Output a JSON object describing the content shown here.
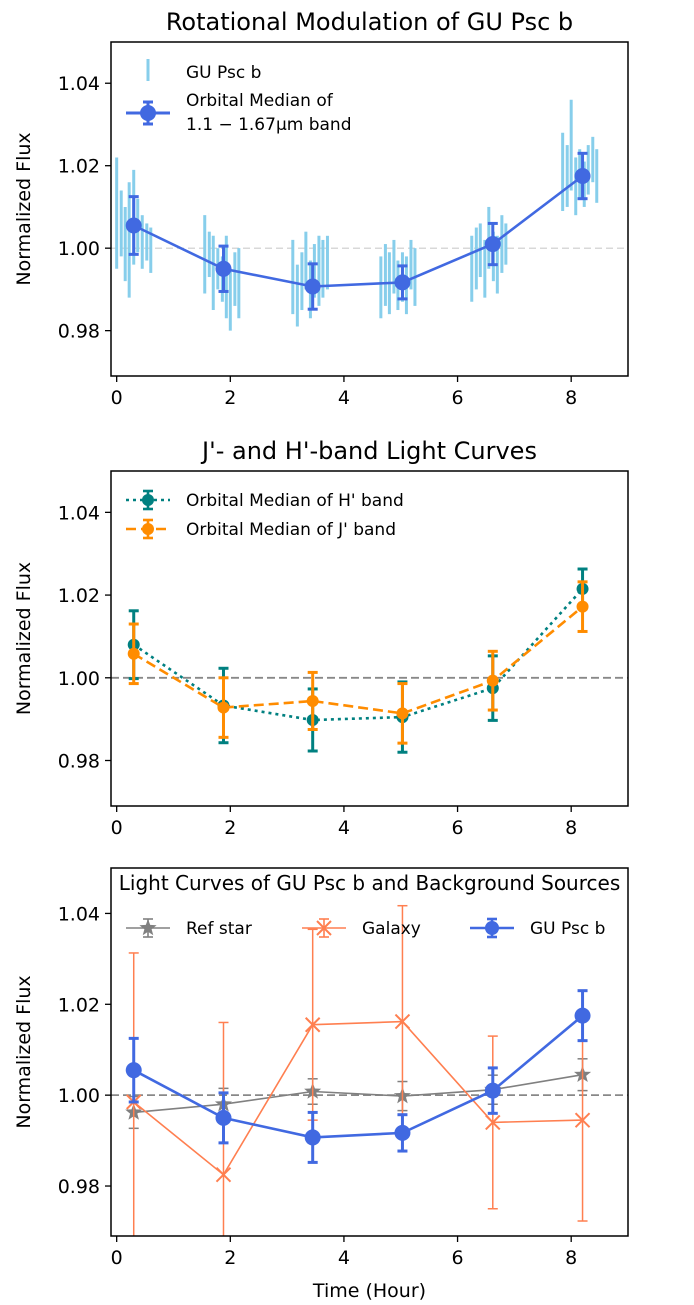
{
  "chart_data": [
    {
      "type": "line",
      "title": "Rotational Modulation of GU Psc b",
      "ylabel": "Normalized Flux",
      "xlabel": "",
      "xlim": [
        -0.1,
        9.0
      ],
      "ylim": [
        0.969,
        1.05
      ],
      "xticks": [
        0,
        2,
        4,
        6,
        8
      ],
      "yticks": [
        0.98,
        1.0,
        1.02,
        1.04
      ],
      "ytick_labels": [
        "0.98",
        "1.00",
        "1.02",
        "1.04"
      ],
      "reference_line": 1.0,
      "legend_position": "upper-left",
      "individual_points": {
        "name": "GU Psc b",
        "color": "#87ceeb",
        "points": [
          {
            "x": 0.0,
            "lo": 0.995,
            "hi": 1.022
          },
          {
            "x": 0.08,
            "lo": 0.998,
            "hi": 1.014
          },
          {
            "x": 0.15,
            "lo": 0.992,
            "hi": 1.01
          },
          {
            "x": 0.22,
            "lo": 0.988,
            "hi": 1.016
          },
          {
            "x": 0.3,
            "lo": 0.996,
            "hi": 1.019
          },
          {
            "x": 0.37,
            "lo": 0.999,
            "hi": 1.012
          },
          {
            "x": 0.45,
            "lo": 0.995,
            "hi": 1.008
          },
          {
            "x": 0.53,
            "lo": 0.997,
            "hi": 1.006
          },
          {
            "x": 0.6,
            "lo": 0.994,
            "hi": 1.005
          },
          {
            "x": 1.55,
            "lo": 0.989,
            "hi": 1.008
          },
          {
            "x": 1.63,
            "lo": 0.993,
            "hi": 1.004
          },
          {
            "x": 1.7,
            "lo": 0.985,
            "hi": 1.003
          },
          {
            "x": 1.78,
            "lo": 0.99,
            "hi": 1.0
          },
          {
            "x": 1.86,
            "lo": 0.987,
            "hi": 0.998
          },
          {
            "x": 1.93,
            "lo": 0.983,
            "hi": 1.003
          },
          {
            "x": 2.0,
            "lo": 0.98,
            "hi": 0.995
          },
          {
            "x": 2.08,
            "lo": 0.986,
            "hi": 0.999
          },
          {
            "x": 2.15,
            "lo": 0.983,
            "hi": 1.0
          },
          {
            "x": 3.1,
            "lo": 0.984,
            "hi": 1.002
          },
          {
            "x": 3.18,
            "lo": 0.981,
            "hi": 0.996
          },
          {
            "x": 3.26,
            "lo": 0.985,
            "hi": 0.999
          },
          {
            "x": 3.33,
            "lo": 0.99,
            "hi": 1.004
          },
          {
            "x": 3.41,
            "lo": 0.983,
            "hi": 0.997
          },
          {
            "x": 3.48,
            "lo": 0.988,
            "hi": 1.001
          },
          {
            "x": 3.56,
            "lo": 0.986,
            "hi": 1.003
          },
          {
            "x": 3.63,
            "lo": 0.988,
            "hi": 1.002
          },
          {
            "x": 3.71,
            "lo": 0.99,
            "hi": 1.003
          },
          {
            "x": 4.65,
            "lo": 0.983,
            "hi": 0.998
          },
          {
            "x": 4.73,
            "lo": 0.986,
            "hi": 1.001
          },
          {
            "x": 4.8,
            "lo": 0.984,
            "hi": 0.999
          },
          {
            "x": 4.88,
            "lo": 0.989,
            "hi": 1.002
          },
          {
            "x": 4.95,
            "lo": 0.985,
            "hi": 0.997
          },
          {
            "x": 5.03,
            "lo": 0.987,
            "hi": 0.999
          },
          {
            "x": 5.1,
            "lo": 0.984,
            "hi": 0.998
          },
          {
            "x": 5.18,
            "lo": 0.99,
            "hi": 1.002
          },
          {
            "x": 5.25,
            "lo": 0.986,
            "hi": 1.0
          },
          {
            "x": 6.25,
            "lo": 0.987,
            "hi": 1.003
          },
          {
            "x": 6.33,
            "lo": 0.99,
            "hi": 1.005
          },
          {
            "x": 6.4,
            "lo": 0.993,
            "hi": 1.006
          },
          {
            "x": 6.48,
            "lo": 0.988,
            "hi": 1.002
          },
          {
            "x": 6.55,
            "lo": 0.995,
            "hi": 1.01
          },
          {
            "x": 6.63,
            "lo": 0.992,
            "hi": 1.004
          },
          {
            "x": 6.7,
            "lo": 0.989,
            "hi": 1.003
          },
          {
            "x": 6.78,
            "lo": 0.994,
            "hi": 1.008
          },
          {
            "x": 6.85,
            "lo": 0.996,
            "hi": 1.006
          },
          {
            "x": 7.85,
            "lo": 1.009,
            "hi": 1.028
          },
          {
            "x": 7.93,
            "lo": 1.01,
            "hi": 1.025
          },
          {
            "x": 8.0,
            "lo": 1.014,
            "hi": 1.036
          },
          {
            "x": 8.08,
            "lo": 1.008,
            "hi": 1.022
          },
          {
            "x": 8.15,
            "lo": 1.012,
            "hi": 1.024
          },
          {
            "x": 8.23,
            "lo": 1.01,
            "hi": 1.021
          },
          {
            "x": 8.3,
            "lo": 1.013,
            "hi": 1.025
          },
          {
            "x": 8.38,
            "lo": 1.016,
            "hi": 1.027
          },
          {
            "x": 8.45,
            "lo": 1.011,
            "hi": 1.024
          }
        ]
      },
      "series": [
        {
          "name": "Orbital Median of 1.1 − 1.67μm band",
          "color": "#4169e1",
          "linestyle": "solid",
          "marker": "circle",
          "x": [
            0.3,
            1.88,
            3.45,
            5.03,
            6.62,
            8.2
          ],
          "y": [
            1.0055,
            0.995,
            0.9907,
            0.9917,
            1.001,
            1.0175
          ],
          "err": [
            0.007,
            0.0055,
            0.0055,
            0.004,
            0.005,
            0.0055
          ]
        }
      ],
      "legend_labels": [
        "GU Psc b",
        "Orbital Median of",
        "1.1 − 1.67μm band"
      ]
    },
    {
      "type": "line",
      "title": "J'- and H'-band Light Curves",
      "ylabel": "Normalized Flux",
      "xlabel": "",
      "xlim": [
        -0.1,
        9.0
      ],
      "ylim": [
        0.969,
        1.05
      ],
      "xticks": [
        0,
        2,
        4,
        6,
        8
      ],
      "yticks": [
        0.98,
        1.0,
        1.02,
        1.04
      ],
      "ytick_labels": [
        "0.98",
        "1.00",
        "1.02",
        "1.04"
      ],
      "reference_line": 1.0,
      "legend_position": "upper-left",
      "series": [
        {
          "name": "Orbital Median of H' band",
          "color": "#008080",
          "linestyle": "dotted",
          "marker": "circle",
          "x": [
            0.3,
            1.88,
            3.45,
            5.03,
            6.62,
            8.2
          ],
          "y": [
            1.008,
            0.9933,
            0.9898,
            0.9905,
            0.9975,
            1.0215
          ],
          "err": [
            0.0082,
            0.009,
            0.0075,
            0.0085,
            0.0078,
            0.0048
          ]
        },
        {
          "name": "Orbital Median of J' band",
          "color": "#ff8c00",
          "linestyle": "dashed",
          "marker": "circle",
          "x": [
            0.3,
            1.88,
            3.45,
            5.03,
            6.62,
            8.2
          ],
          "y": [
            1.0058,
            0.9928,
            0.9944,
            0.9914,
            0.9993,
            1.0172
          ],
          "err": [
            0.0072,
            0.0072,
            0.0069,
            0.0072,
            0.0071,
            0.006
          ]
        }
      ]
    },
    {
      "type": "line",
      "title": "Light Curves of GU Psc b and Background Sources",
      "ylabel": "Normalized Flux",
      "xlabel": "Time (Hour)",
      "xlim": [
        -0.1,
        9.0
      ],
      "ylim": [
        0.969,
        1.05
      ],
      "xticks": [
        0,
        2,
        4,
        6,
        8
      ],
      "yticks": [
        0.98,
        1.0,
        1.02,
        1.04
      ],
      "ytick_labels": [
        "0.98",
        "1.00",
        "1.02",
        "1.04"
      ],
      "reference_line": 1.0,
      "legend_position": "top",
      "series": [
        {
          "name": "Ref star",
          "color": "#808080",
          "linestyle": "solid",
          "marker": "star",
          "x": [
            0.3,
            1.88,
            3.45,
            5.03,
            6.62,
            8.2
          ],
          "y": [
            0.9962,
            0.998,
            1.0008,
            0.9998,
            1.0012,
            1.0045
          ],
          "err": [
            0.0035,
            0.0035,
            0.0028,
            0.0032,
            0.0032,
            0.0035
          ]
        },
        {
          "name": "Galaxy",
          "color": "#ff7f50",
          "linestyle": "solid",
          "marker": "x",
          "x": [
            0.3,
            1.88,
            3.45,
            5.03,
            6.62,
            8.2
          ],
          "y": [
            0.9985,
            0.9825,
            1.0155,
            1.0162,
            0.994,
            0.9945
          ],
          "err": [
            0.0328,
            0.0335,
            0.021,
            0.0255,
            0.019,
            0.0222
          ]
        },
        {
          "name": "GU Psc b",
          "color": "#4169e1",
          "linestyle": "solid",
          "marker": "circle",
          "x": [
            0.3,
            1.88,
            3.45,
            5.03,
            6.62,
            8.2
          ],
          "y": [
            1.0055,
            0.995,
            0.9907,
            0.9917,
            1.001,
            1.0175
          ],
          "err": [
            0.007,
            0.0055,
            0.0055,
            0.004,
            0.005,
            0.0055
          ]
        }
      ]
    }
  ]
}
